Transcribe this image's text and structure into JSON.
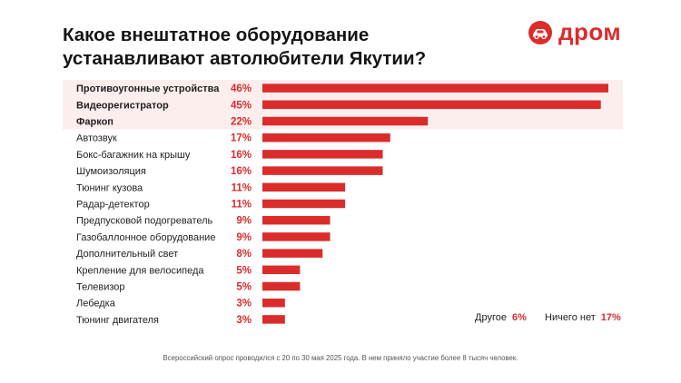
{
  "title_line1": "Какое внештатное оборудование",
  "title_line2": "устанавливают автолюбители Якутии?",
  "logo": {
    "text": "дром",
    "icon": "car-icon",
    "color": "#db2c2c"
  },
  "chart_data": {
    "type": "bar",
    "orientation": "horizontal",
    "unit": "%",
    "xlim": [
      0,
      46
    ],
    "bar_color": "#db2c2c",
    "highlight_color": "#fdeeee",
    "categories": [
      "Противоугонные устройства",
      "Видеорегистратор",
      "Фаркоп",
      "Автозвук",
      "Бокс-багажник на крышу",
      "Шумоизоляция",
      "Тюнинг кузова",
      "Радар-детектор",
      "Предпусковой подогреватель",
      "Газобаллонное оборудование",
      "Дополнительный свет",
      "Крепление для велосипеда",
      "Телевизор",
      "Лебедка",
      "Тюнинг двигателя"
    ],
    "values": [
      46,
      45,
      22,
      17,
      16,
      16,
      11,
      11,
      9,
      9,
      8,
      5,
      5,
      3,
      3
    ],
    "labels": [
      "46%",
      "45%",
      "22%",
      "17%",
      "16%",
      "16%",
      "11%",
      "11%",
      "9%",
      "9%",
      "8%",
      "5%",
      "5%",
      "3%",
      "3%"
    ],
    "highlighted": [
      0,
      1,
      2
    ],
    "extra": [
      {
        "label": "Другое",
        "value": "6%"
      },
      {
        "label": "Ничего нет",
        "value": "17%"
      }
    ]
  },
  "footnote": "Всероссийский опрос проводился с 20 по 30 мая 2025 года. В нем приняло участие более 8 тысяч человек."
}
